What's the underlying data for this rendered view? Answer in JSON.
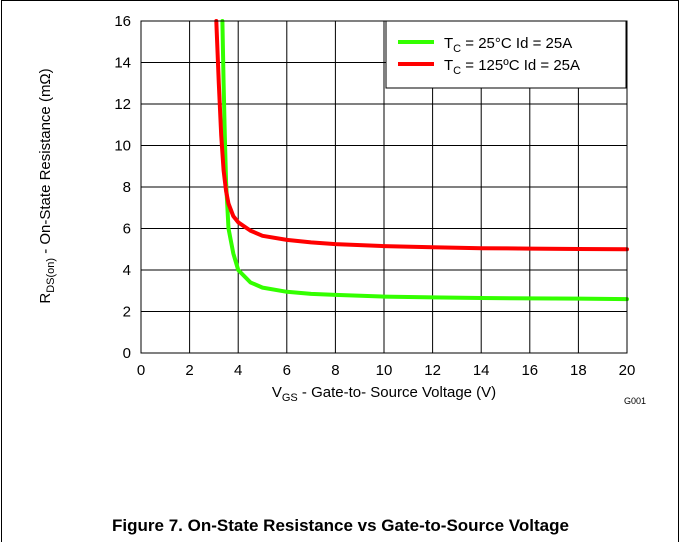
{
  "figure": {
    "code": "G001",
    "caption": "Figure 7. On-State Resistance vs Gate-to-Source Voltage"
  },
  "chart_data": {
    "type": "line",
    "xlabel": {
      "main": "V",
      "sub": "GS",
      "rest": " - Gate-to- Source Voltage (V)"
    },
    "ylabel": {
      "main": "R",
      "sub": "DS(on)",
      "rest": " - On-State Resistance  (mΩ)"
    },
    "xlim": [
      0,
      20
    ],
    "ylim": [
      0,
      16
    ],
    "xticks": [
      "0",
      "2",
      "4",
      "6",
      "8",
      "10",
      "12",
      "14",
      "16",
      "18",
      "20"
    ],
    "yticks": [
      "0",
      "2",
      "4",
      "6",
      "8",
      "10",
      "12",
      "14",
      "16"
    ],
    "grid": true,
    "legend_position": "top-right",
    "series": [
      {
        "name": "TC = 25°C   Id = 25A",
        "legend": {
          "pre": "T",
          "sub": "C",
          "post": " = 25°C   Id = 25A"
        },
        "color": "#33ff00",
        "x": [
          3.35,
          3.4,
          3.45,
          3.5,
          3.6,
          3.8,
          4.0,
          4.5,
          5.0,
          6.0,
          7.0,
          8.0,
          10.0,
          12.0,
          14.0,
          16.0,
          18.0,
          20.0
        ],
        "y": [
          16.0,
          13.0,
          10.5,
          8.2,
          6.0,
          4.8,
          4.0,
          3.4,
          3.15,
          2.95,
          2.85,
          2.8,
          2.72,
          2.68,
          2.65,
          2.63,
          2.62,
          2.6
        ]
      },
      {
        "name": "TC = 125ºC Id = 25A",
        "legend": {
          "pre": "T",
          "sub": "C",
          "post": " = 125ºC Id = 25A"
        },
        "color": "#ff0000",
        "x": [
          3.1,
          3.2,
          3.3,
          3.4,
          3.5,
          3.6,
          3.8,
          4.0,
          4.5,
          5.0,
          6.0,
          7.0,
          8.0,
          10.0,
          12.0,
          14.0,
          16.0,
          18.0,
          20.0
        ],
        "y": [
          16.0,
          13.0,
          10.5,
          8.8,
          7.8,
          7.2,
          6.6,
          6.3,
          5.9,
          5.65,
          5.45,
          5.33,
          5.25,
          5.15,
          5.1,
          5.05,
          5.03,
          5.01,
          5.0
        ]
      }
    ]
  }
}
